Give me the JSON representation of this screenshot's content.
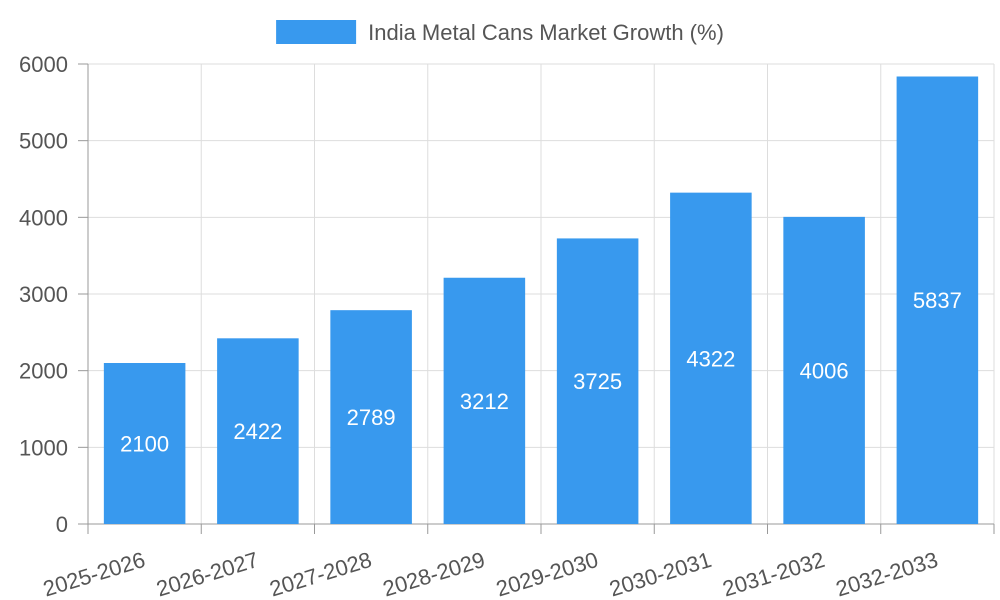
{
  "chart_data": {
    "type": "bar",
    "categories": [
      "2025-2026",
      "2026-2027",
      "2027-2028",
      "2028-2029",
      "2029-2030",
      "2030-2031",
      "2031-2032",
      "2032-2033"
    ],
    "series": [
      {
        "name": "India Metal Cans Market Growth (%)",
        "values": [
          2100,
          2422,
          2789,
          3212,
          3725,
          4322,
          4006,
          5837
        ]
      }
    ],
    "ylim": [
      0,
      6000
    ],
    "yticks": [
      0,
      1000,
      2000,
      3000,
      4000,
      5000,
      6000
    ],
    "grid": true,
    "legend_position": "top-center",
    "data_labels": true,
    "bar_color": "#3899ee",
    "label_color": "#ffffff"
  }
}
